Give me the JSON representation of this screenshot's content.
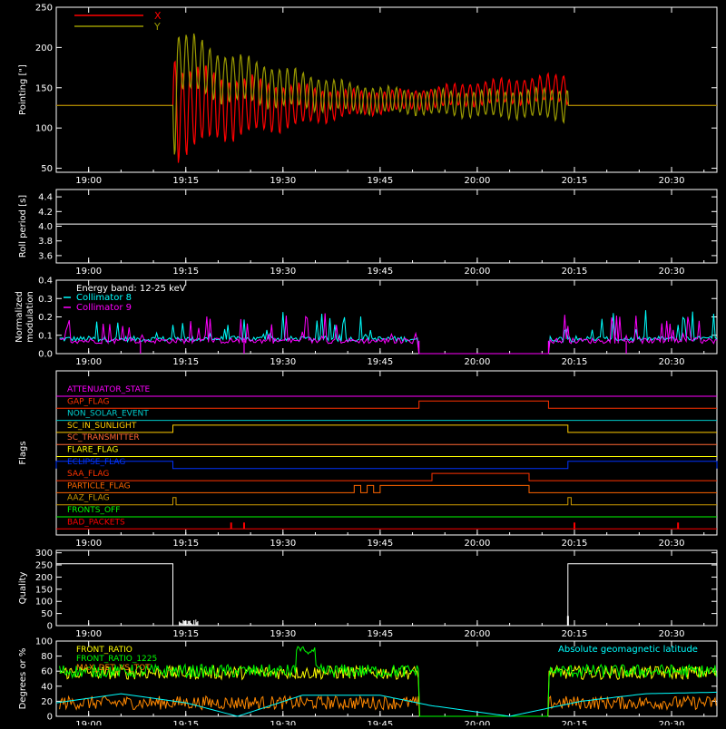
{
  "chart_data": [
    {
      "type": "line",
      "ylabel": "Pointing [\"]",
      "ylim": [
        45,
        250
      ],
      "yticks": [
        50,
        100,
        150,
        200,
        250
      ],
      "xlim": [
        "18:55",
        "20:37"
      ],
      "xticks": [
        "19:00",
        "19:15",
        "19:30",
        "19:45",
        "20:00",
        "20:15",
        "20:30"
      ],
      "legend": "top-left",
      "series": [
        {
          "name": "X",
          "color": "#ff0000",
          "x": [
            "18:55",
            "19:13",
            "19:13",
            "19:14",
            "19:20",
            "19:30",
            "19:40",
            "19:50",
            "20:00",
            "20:10",
            "20:14",
            "20:14",
            "20:37"
          ],
          "center": [
            128,
            128,
            128,
            125,
            126,
            127,
            130,
            135,
            143,
            148,
            150,
            128,
            128
          ],
          "amplitude": [
            0,
            0,
            90,
            70,
            50,
            35,
            20,
            15,
            18,
            20,
            22,
            0,
            0
          ]
        },
        {
          "name": "Y",
          "color": "#999900",
          "x": [
            "18:55",
            "19:13",
            "19:13",
            "19:14",
            "19:20",
            "19:30",
            "19:40",
            "19:50",
            "20:00",
            "20:10",
            "20:14",
            "20:14",
            "20:37"
          ],
          "center": [
            128,
            128,
            128,
            185,
            165,
            150,
            138,
            132,
            130,
            130,
            130,
            128,
            128
          ],
          "amplitude": [
            0,
            0,
            100,
            45,
            38,
            30,
            22,
            18,
            20,
            22,
            25,
            0,
            0
          ]
        }
      ]
    },
    {
      "type": "line",
      "ylabel": "Roll period [s]",
      "ylim": [
        3.5,
        4.5
      ],
      "yticks": [
        "3.6",
        "3.8",
        "4.0",
        "4.2",
        "4.4"
      ],
      "xticks": [
        "19:00",
        "19:15",
        "19:30",
        "19:45",
        "20:00",
        "20:15",
        "20:30"
      ],
      "series": [
        {
          "name": "",
          "color": "#ffffff",
          "x": [
            "18:55",
            "20:37"
          ],
          "values": [
            4.03,
            4.03
          ]
        }
      ]
    },
    {
      "type": "line",
      "ylabel": "Normalized modulation",
      "ylim": [
        0,
        0.4
      ],
      "yticks": [
        "0.0",
        "0.1",
        "0.2",
        "0.3",
        "0.4"
      ],
      "xticks": [
        "19:00",
        "19:15",
        "19:30",
        "19:45",
        "20:00",
        "20:15",
        "20:30"
      ],
      "legend_title": "Energy band: 12-25 keV",
      "series": [
        {
          "name": "Collimator 8",
          "color": "#00ffff",
          "baseline": 0.08,
          "gaps": [
            [
              "19:51",
              "20:11"
            ]
          ]
        },
        {
          "name": "Collimator 9",
          "color": "#ff00ff",
          "baseline": 0.07,
          "gaps": [
            [
              "19:51",
              "20:11"
            ]
          ],
          "dips": [
            "19:08",
            "19:24",
            "19:51",
            "20:11",
            "20:23"
          ]
        }
      ]
    },
    {
      "type": "line",
      "ylabel": "Flags",
      "xticks": [
        "19:00",
        "19:15",
        "19:30",
        "19:45",
        "20:00",
        "20:15",
        "20:30"
      ],
      "flags": [
        {
          "name": "ATTENUATOR_STATE",
          "color": "#ff00ff",
          "high": []
        },
        {
          "name": "GAP_FLAG",
          "color": "#ff3300",
          "high": [
            [
              "19:51",
              "20:11"
            ]
          ]
        },
        {
          "name": "NON_SOLAR_EVENT",
          "color": "#00cccc",
          "high": []
        },
        {
          "name": "SC_IN_SUNLIGHT",
          "color": "#ffcc00",
          "high": [
            [
              "19:13",
              "20:14"
            ]
          ]
        },
        {
          "name": "SC_TRANSMITTER",
          "color": "#ff6633",
          "high": []
        },
        {
          "name": "FLARE_FLAG",
          "color": "#ffff00",
          "high": []
        },
        {
          "name": "ECLIPSE_FLAG",
          "color": "#0033ff",
          "high": [
            [
              "18:55",
              "19:13"
            ],
            [
              "20:14",
              "20:37"
            ]
          ]
        },
        {
          "name": "SAA_FLAG",
          "color": "#ff3300",
          "high": [
            [
              "19:53",
              "20:08"
            ]
          ]
        },
        {
          "name": "PARTICLE_FLAG",
          "color": "#ff6600",
          "high": [
            [
              "19:41",
              "19:42"
            ],
            [
              "19:43",
              "19:44"
            ],
            [
              "19:45",
              "20:08"
            ]
          ]
        },
        {
          "name": "AAZ_FLAG",
          "color": "#cc9900",
          "high": [
            [
              "19:13",
              "19:13.5"
            ],
            [
              "20:14",
              "20:14.5"
            ]
          ]
        },
        {
          "name": "FRONTS_OFF",
          "color": "#00ff00",
          "high": []
        },
        {
          "name": "BAD_PACKETS",
          "color": "#ff0000",
          "high": [],
          "ticks": [
            "19:22",
            "19:24",
            "20:15",
            "20:31"
          ]
        }
      ]
    },
    {
      "type": "line",
      "ylabel": "Quality",
      "ylim": [
        0,
        310
      ],
      "yticks": [
        0,
        50,
        100,
        150,
        200,
        250,
        300
      ],
      "xticks": [
        "19:00",
        "19:15",
        "19:30",
        "19:45",
        "20:00",
        "20:15",
        "20:30"
      ],
      "series": [
        {
          "name": "",
          "color": "#ffffff",
          "x": [
            "18:55",
            "19:13",
            "19:13",
            "20:14",
            "20:14",
            "20:37"
          ],
          "values": [
            255,
            255,
            0,
            0,
            255,
            255
          ]
        }
      ]
    },
    {
      "type": "line",
      "ylabel": "Degrees or %",
      "ylim": [
        0,
        100
      ],
      "yticks": [
        0,
        20,
        40,
        60,
        80,
        100
      ],
      "xticks": [
        "19:00",
        "19:15",
        "19:30",
        "19:45",
        "20:00",
        "20:15",
        "20:30"
      ],
      "series": [
        {
          "name": "FRONT_RATIO",
          "color": "#ffff00",
          "baseline": 58,
          "gaps": [
            [
              "19:51",
              "20:11"
            ]
          ]
        },
        {
          "name": "FRONT_RATIO_1225",
          "color": "#00ff00",
          "baseline": 60,
          "gaps": [
            [
              "19:51",
              "20:11"
            ]
          ],
          "peak": [
            "19:32",
            "19:35",
            88
          ]
        },
        {
          "name": "MAX_DET_VS_TOT",
          "color": "#ff8800",
          "baseline": 18,
          "gaps": [
            [
              "19:51",
              "20:11"
            ]
          ]
        },
        {
          "name": "Absolute geomagnetic latitude",
          "color": "#00ffff",
          "x": [
            "18:55",
            "19:05",
            "19:15",
            "19:23",
            "19:33",
            "19:45",
            "19:53",
            "20:05",
            "20:16",
            "20:26",
            "20:37"
          ],
          "values": [
            18,
            30,
            18,
            0,
            28,
            28,
            14,
            0,
            20,
            30,
            32
          ]
        }
      ]
    }
  ]
}
